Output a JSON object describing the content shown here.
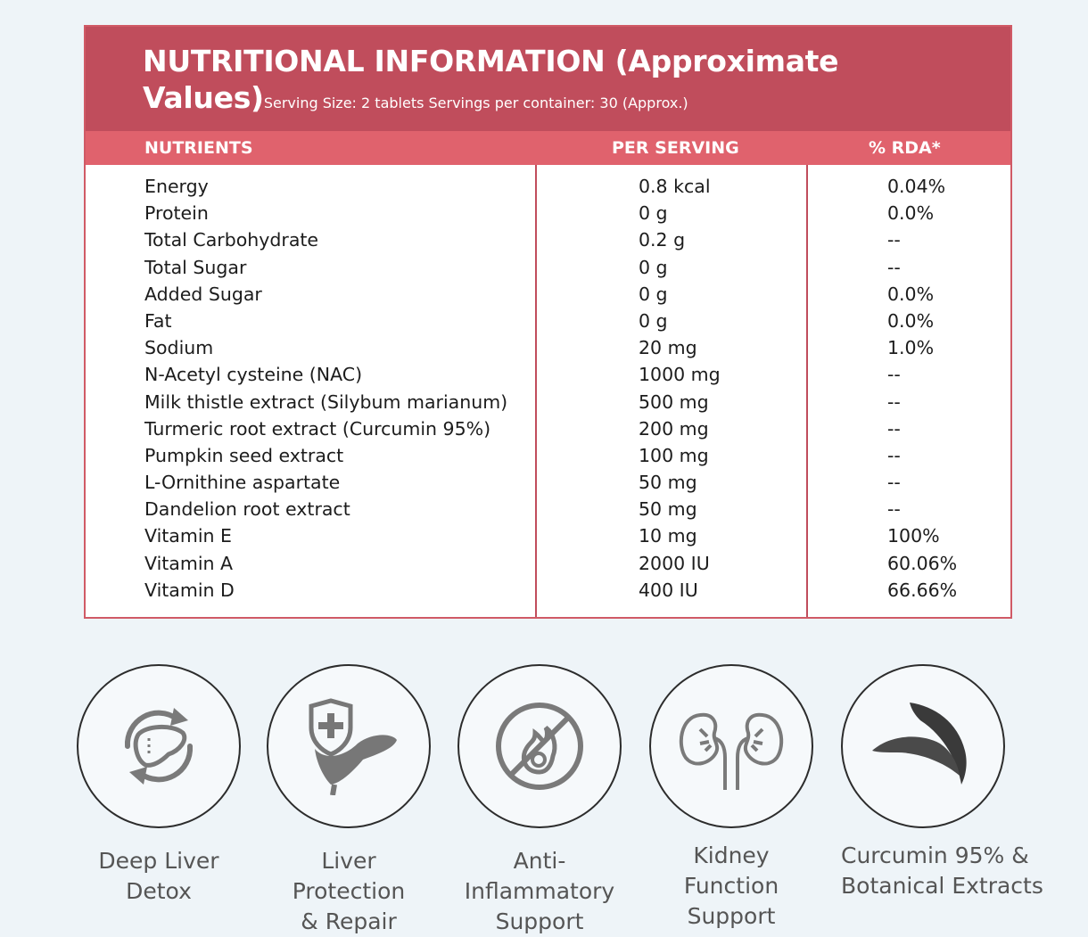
{
  "panel": {
    "title": "NUTRITIONAL INFORMATION (Approximate Values)",
    "subtitle": "Serving Size: 2 tablets Servings per container: 30 (Approx.)",
    "headers": {
      "nutrients": "NUTRIENTS",
      "per_serving": "PER SERVING",
      "rda": "% RDA*"
    },
    "rows": [
      {
        "nutrient": "Energy",
        "per_serving": "0.8 kcal",
        "rda": "0.04%"
      },
      {
        "nutrient": "Protein",
        "per_serving": "0 g",
        "rda": "0.0%"
      },
      {
        "nutrient": "Total Carbohydrate",
        "per_serving": "0.2 g",
        "rda": "--"
      },
      {
        "nutrient": "Total Sugar",
        "per_serving": "0 g",
        "rda": "--"
      },
      {
        "nutrient": "Added Sugar",
        "per_serving": "0 g",
        "rda": "0.0%"
      },
      {
        "nutrient": "Fat",
        "per_serving": "0 g",
        "rda": "0.0%"
      },
      {
        "nutrient": "Sodium",
        "per_serving": "20 mg",
        "rda": "1.0%"
      },
      {
        "nutrient": "N-Acetyl cysteine (NAC)",
        "per_serving": "1000 mg",
        "rda": "--"
      },
      {
        "nutrient": "Milk thistle extract (Silybum marianum)",
        "per_serving": "500 mg",
        "rda": "--"
      },
      {
        "nutrient": "Turmeric root extract (Curcumin 95%)",
        "per_serving": "200 mg",
        "rda": "--"
      },
      {
        "nutrient": "Pumpkin seed extract",
        "per_serving": "100 mg",
        "rda": "--"
      },
      {
        "nutrient": "L-Ornithine aspartate",
        "per_serving": "50 mg",
        "rda": "--"
      },
      {
        "nutrient": "Dandelion root extract",
        "per_serving": "50 mg",
        "rda": "--"
      },
      {
        "nutrient": "Vitamin E",
        "per_serving": "10 mg",
        "rda": "100%"
      },
      {
        "nutrient": "Vitamin A",
        "per_serving": "2000 IU",
        "rda": "60.06%"
      },
      {
        "nutrient": "Vitamin D",
        "per_serving": "400 IU",
        "rda": "66.66%"
      }
    ]
  },
  "features": [
    {
      "icon": "liver-detox-icon",
      "label_lines": [
        "Deep Liver",
        "Detox"
      ]
    },
    {
      "icon": "liver-shield-icon",
      "label_lines": [
        "Liver",
        "Protection",
        "& Repair"
      ]
    },
    {
      "icon": "no-inflammation-icon",
      "label_lines": [
        "Anti-",
        "Inflammatory",
        "Support"
      ]
    },
    {
      "icon": "kidney-icon",
      "label_lines": [
        "Kidney",
        "Function",
        "Support"
      ]
    },
    {
      "icon": "turmeric-leaf-icon",
      "label_lines": [
        "Curcumin 95% &",
        "Botanical Extracts"
      ]
    }
  ],
  "colors": {
    "title_bg": "#c04d5c",
    "header_bg": "#e0626d",
    "border": "#d05a66",
    "icon_gray": "#777777"
  }
}
